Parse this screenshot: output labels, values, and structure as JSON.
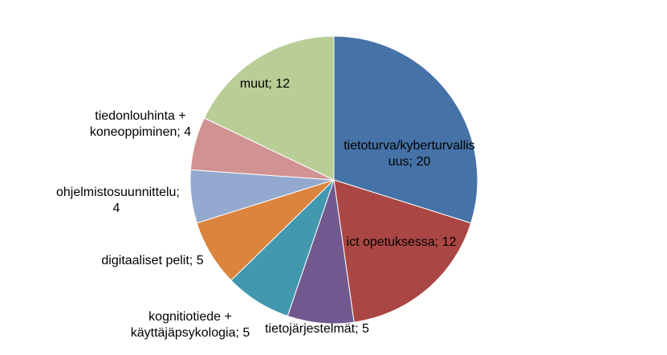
{
  "chart_data": {
    "type": "pie",
    "values": [
      20,
      12,
      5,
      5,
      5,
      4,
      4,
      12
    ],
    "value_labels": [
      "tietoturva/kyberturvallisuus; 20",
      "ict opetuksessa; 12",
      "tietojärjestelmät; 5",
      "kognitiotiede + käyttäjäpsykologia; 5",
      "digitaaliset pelit; 5",
      "ohjelmistosuunnittelu; 4",
      "tiedonlouhinta + koneoppiminen; 4",
      "muut; 12"
    ],
    "colors": [
      "#4572a7",
      "#aa4643",
      "#71588f",
      "#4198af",
      "#db843d",
      "#93a9cf",
      "#d19392",
      "#b9cd96"
    ]
  }
}
